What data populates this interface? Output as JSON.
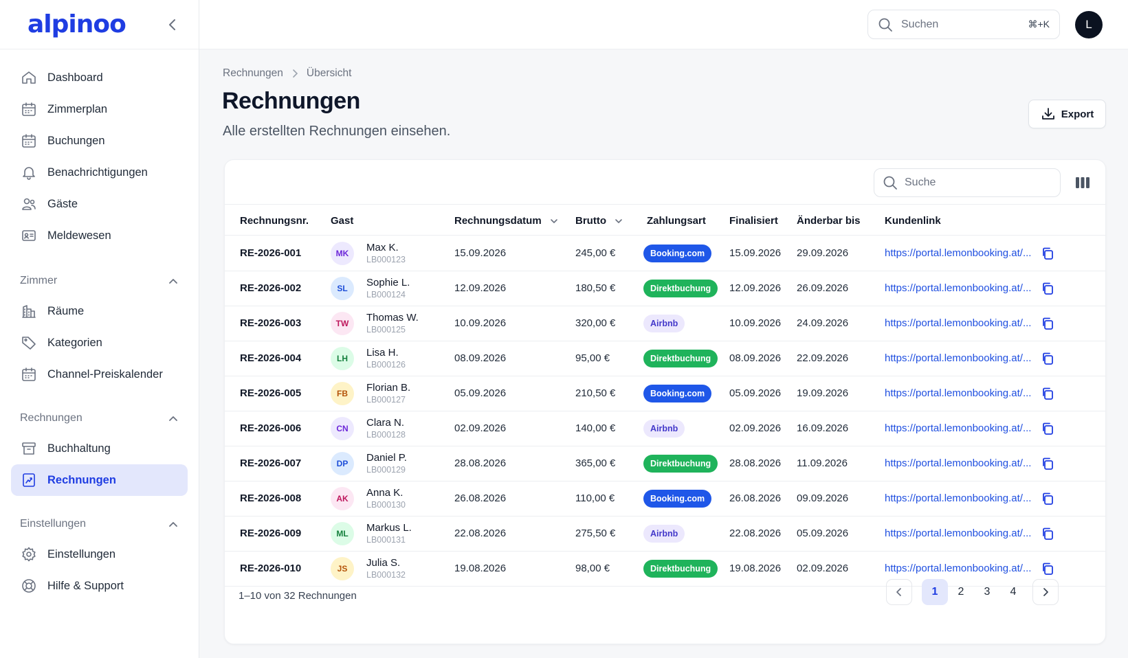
{
  "brand": {
    "logo_text": "alpinoo",
    "color": "#1f3de2"
  },
  "sidebar": {
    "main_items": [
      {
        "label": "Dashboard",
        "icon": "home-icon"
      },
      {
        "label": "Zimmerplan",
        "icon": "calendar-icon"
      },
      {
        "label": "Buchungen",
        "icon": "calendar-icon"
      },
      {
        "label": "Benachrichtigungen",
        "icon": "bell-icon"
      },
      {
        "label": "Gäste",
        "icon": "users-icon"
      },
      {
        "label": "Meldewesen",
        "icon": "id-card-icon"
      }
    ],
    "sections": [
      {
        "title": "Zimmer",
        "items": [
          {
            "label": "Räume",
            "icon": "building-icon"
          },
          {
            "label": "Kategorien",
            "icon": "tag-icon"
          },
          {
            "label": "Channel-Preiskalender",
            "icon": "calendar-icon"
          }
        ]
      },
      {
        "title": "Rechnungen",
        "items": [
          {
            "label": "Buchhaltung",
            "icon": "archive-icon"
          },
          {
            "label": "Rechnungen",
            "icon": "invoice-icon",
            "active": true
          }
        ]
      },
      {
        "title": "Einstellungen",
        "items": [
          {
            "label": "Einstellungen",
            "icon": "gear-icon"
          },
          {
            "label": "Hilfe & Support",
            "icon": "lifebuoy-icon"
          }
        ]
      }
    ]
  },
  "topbar": {
    "search_placeholder": "Suchen",
    "shortcut": "⌘+K",
    "user_initial": "L"
  },
  "breadcrumb": [
    "Rechnungen",
    "Übersicht"
  ],
  "page": {
    "title": "Rechnungen",
    "subtitle": "Alle erstellten Rechnungen einsehen.",
    "export_label": "Export"
  },
  "table": {
    "search_placeholder": "Suche",
    "columns": [
      "Rechnungsnr.",
      "Gast",
      "Rechnungsdatum",
      "Brutto",
      "Zahlungsart",
      "Finalisiert",
      "Änderbar bis",
      "Kundenlink"
    ],
    "payment_colors": {
      "Booking.com": {
        "bg": "#1f57e8",
        "fg": "#ffffff"
      },
      "Direktbuchung": {
        "bg": "#1fb35b",
        "fg": "#ffffff"
      },
      "Airbnb": {
        "bg": "#ece8fd",
        "fg": "#4338ca"
      }
    },
    "rows": [
      {
        "nr": "RE-2026-001",
        "initials": "MK",
        "name": "Max K.",
        "id": "LB000123",
        "date": "15.09.2026",
        "gross": "245,00 €",
        "payment": "Booking.com",
        "final": "15.09.2026",
        "editable": "29.09.2026",
        "link": "https://portal.lemonbooking.at/...",
        "av_bg": "#ede9fe",
        "av_fg": "#6d28d9"
      },
      {
        "nr": "RE-2026-002",
        "initials": "SL",
        "name": "Sophie L.",
        "id": "LB000124",
        "date": "12.09.2026",
        "gross": "180,50 €",
        "payment": "Direktbuchung",
        "final": "12.09.2026",
        "editable": "26.09.2026",
        "link": "https://portal.lemonbooking.at/...",
        "av_bg": "#dbeafe",
        "av_fg": "#1d4ed8"
      },
      {
        "nr": "RE-2026-003",
        "initials": "TW",
        "name": "Thomas W.",
        "id": "LB000125",
        "date": "10.09.2026",
        "gross": "320,00 €",
        "payment": "Airbnb",
        "final": "10.09.2026",
        "editable": "24.09.2026",
        "link": "https://portal.lemonbooking.at/...",
        "av_bg": "#fce7f3",
        "av_fg": "#be185d"
      },
      {
        "nr": "RE-2026-004",
        "initials": "LH",
        "name": "Lisa H.",
        "id": "LB000126",
        "date": "08.09.2026",
        "gross": "95,00 €",
        "payment": "Direktbuchung",
        "final": "08.09.2026",
        "editable": "22.09.2026",
        "link": "https://portal.lemonbooking.at/...",
        "av_bg": "#dcfce7",
        "av_fg": "#15803d"
      },
      {
        "nr": "RE-2026-005",
        "initials": "FB",
        "name": "Florian B.",
        "id": "LB000127",
        "date": "05.09.2026",
        "gross": "210,50 €",
        "payment": "Booking.com",
        "final": "05.09.2026",
        "editable": "19.09.2026",
        "link": "https://portal.lemonbooking.at/...",
        "av_bg": "#fef3c7",
        "av_fg": "#b45309"
      },
      {
        "nr": "RE-2026-006",
        "initials": "CN",
        "name": "Clara N.",
        "id": "LB000128",
        "date": "02.09.2026",
        "gross": "140,00 €",
        "payment": "Airbnb",
        "final": "02.09.2026",
        "editable": "16.09.2026",
        "link": "https://portal.lemonbooking.at/...",
        "av_bg": "#ede9fe",
        "av_fg": "#6d28d9"
      },
      {
        "nr": "RE-2026-007",
        "initials": "DP",
        "name": "Daniel P.",
        "id": "LB000129",
        "date": "28.08.2026",
        "gross": "365,00 €",
        "payment": "Direktbuchung",
        "final": "28.08.2026",
        "editable": "11.09.2026",
        "link": "https://portal.lemonbooking.at/...",
        "av_bg": "#dbeafe",
        "av_fg": "#1d4ed8"
      },
      {
        "nr": "RE-2026-008",
        "initials": "AK",
        "name": "Anna K.",
        "id": "LB000130",
        "date": "26.08.2026",
        "gross": "110,00 €",
        "payment": "Booking.com",
        "final": "26.08.2026",
        "editable": "09.09.2026",
        "link": "https://portal.lemonbooking.at/...",
        "av_bg": "#fce7f3",
        "av_fg": "#be185d"
      },
      {
        "nr": "RE-2026-009",
        "initials": "ML",
        "name": "Markus L.",
        "id": "LB000131",
        "date": "22.08.2026",
        "gross": "275,50 €",
        "payment": "Airbnb",
        "final": "22.08.2026",
        "editable": "05.09.2026",
        "link": "https://portal.lemonbooking.at/...",
        "av_bg": "#dcfce7",
        "av_fg": "#15803d"
      },
      {
        "nr": "RE-2026-010",
        "initials": "JS",
        "name": "Julia S.",
        "id": "LB000132",
        "date": "19.08.2026",
        "gross": "98,00 €",
        "payment": "Direktbuchung",
        "final": "19.08.2026",
        "editable": "02.09.2026",
        "link": "https://portal.lemonbooking.at/...",
        "av_bg": "#fef3c7",
        "av_fg": "#b45309"
      }
    ],
    "footer_text": "1–10 von 32 Rechnungen",
    "pages": [
      "1",
      "2",
      "3",
      "4"
    ],
    "current_page": "1"
  }
}
